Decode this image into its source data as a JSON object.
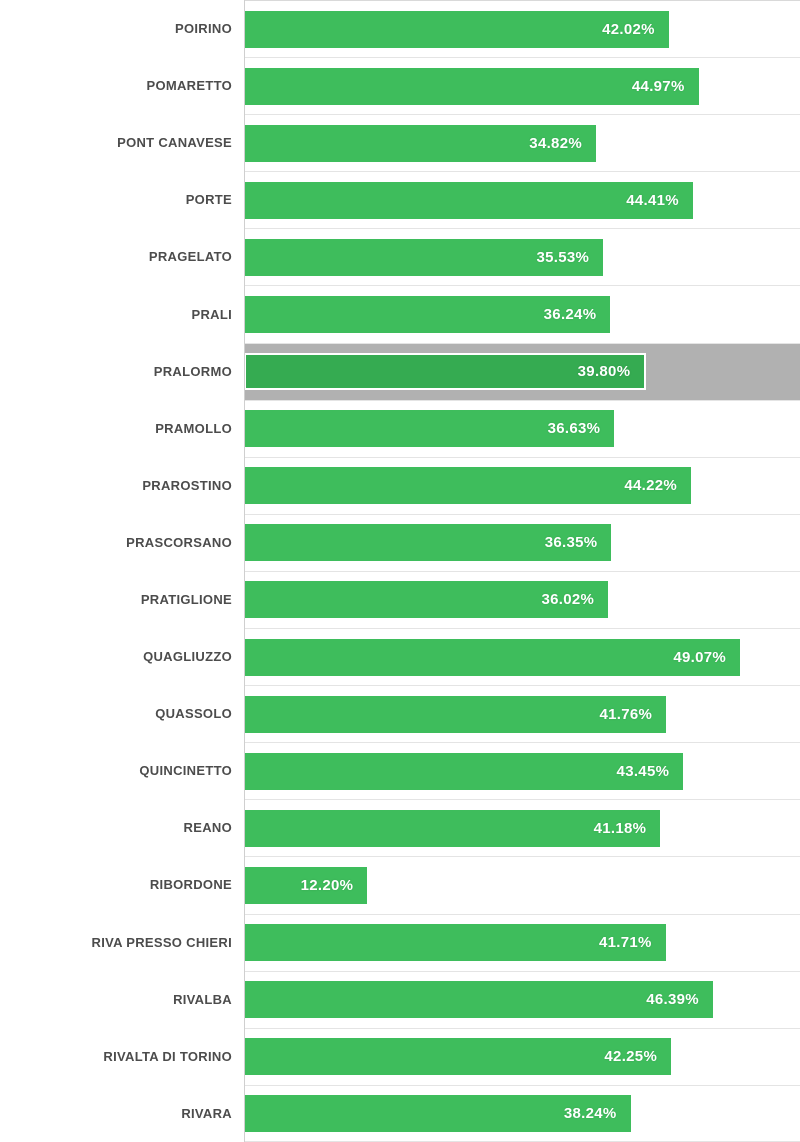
{
  "chart_data": {
    "type": "bar",
    "orientation": "horizontal",
    "xlim": [
      0,
      55
    ],
    "grid": true,
    "unit": "%",
    "legend": "none",
    "categories": [
      "POIRINO",
      "POMARETTO",
      "PONT CANAVESE",
      "PORTE",
      "PRAGELATO",
      "PRALI",
      "PRALORMO",
      "PRAMOLLO",
      "PRAROSTINO",
      "PRASCORSANO",
      "PRATIGLIONE",
      "QUAGLIUZZO",
      "QUASSOLO",
      "QUINCINETTO",
      "REANO",
      "RIBORDONE",
      "RIVA PRESSO CHIERI",
      "RIVALBA",
      "RIVALTA DI TORINO",
      "RIVARA"
    ],
    "values": [
      42.02,
      44.97,
      34.82,
      44.41,
      35.53,
      36.24,
      39.8,
      36.63,
      44.22,
      36.35,
      36.02,
      49.07,
      41.76,
      43.45,
      41.18,
      12.2,
      41.71,
      46.39,
      42.25,
      38.24
    ],
    "value_labels": [
      "42.02%",
      "44.97%",
      "34.82%",
      "44.41%",
      "35.53%",
      "36.24%",
      "39.80%",
      "36.63%",
      "44.22%",
      "36.35%",
      "36.02%",
      "49.07%",
      "41.76%",
      "43.45%",
      "41.18%",
      "12.20%",
      "41.71%",
      "46.39%",
      "42.25%",
      "38.24%"
    ],
    "highlighted_index": 6,
    "highlighted_category": "PRALORMO"
  },
  "colors": {
    "bar": "#3ebd5c",
    "bar_highlight": "#35ab51",
    "highlight_band": "#b1b1b1",
    "grid_line": "#e4e4e4",
    "axis_line": "#cfcfcf",
    "category_text": "#4c4c4c",
    "value_text": "#ffffff",
    "background": "#ffffff"
  }
}
